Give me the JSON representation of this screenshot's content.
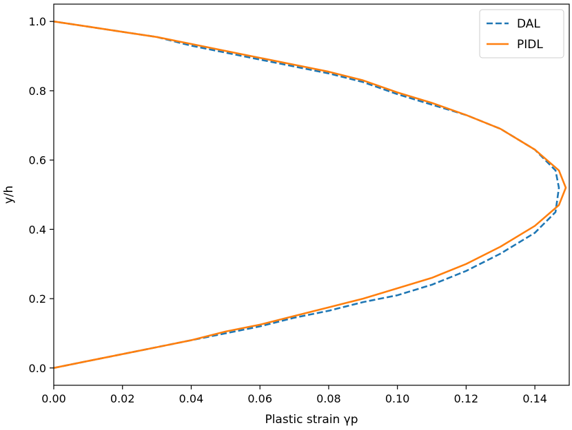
{
  "chart_data": {
    "type": "line",
    "title": "",
    "xlabel": "Plastic strain γp",
    "ylabel": "y/h",
    "xlim": [
      0.0,
      0.15
    ],
    "ylim": [
      -0.05,
      1.05
    ],
    "xticks": [
      "0.00",
      "0.02",
      "0.04",
      "0.06",
      "0.08",
      "0.10",
      "0.12",
      "0.14"
    ],
    "yticks": [
      "0.0",
      "0.2",
      "0.4",
      "0.6",
      "0.8",
      "1.0"
    ],
    "grid": false,
    "legend_position": "top-right",
    "series": [
      {
        "name": "DAL",
        "style": "dashed",
        "color": "#1f77b4",
        "x": [
          0.0,
          0.01,
          0.02,
          0.03,
          0.04,
          0.05,
          0.06,
          0.07,
          0.08,
          0.09,
          0.1,
          0.11,
          0.12,
          0.13,
          0.14,
          0.146,
          0.147,
          0.146,
          0.14,
          0.13,
          0.12,
          0.11,
          0.1,
          0.09,
          0.08,
          0.07,
          0.06,
          0.05,
          0.04,
          0.03,
          0.02,
          0.01,
          0.0
        ],
        "y": [
          0.0,
          0.02,
          0.04,
          0.06,
          0.08,
          0.1,
          0.12,
          0.145,
          0.165,
          0.19,
          0.21,
          0.24,
          0.28,
          0.33,
          0.39,
          0.45,
          0.52,
          0.57,
          0.63,
          0.69,
          0.73,
          0.76,
          0.79,
          0.825,
          0.85,
          0.87,
          0.89,
          0.91,
          0.93,
          0.955,
          0.97,
          0.985,
          1.0
        ]
      },
      {
        "name": "PIDL",
        "style": "solid",
        "color": "#ff7f0e",
        "x": [
          0.0,
          0.01,
          0.02,
          0.03,
          0.04,
          0.05,
          0.06,
          0.07,
          0.08,
          0.09,
          0.1,
          0.11,
          0.12,
          0.13,
          0.14,
          0.147,
          0.149,
          0.147,
          0.14,
          0.13,
          0.12,
          0.11,
          0.1,
          0.09,
          0.08,
          0.07,
          0.06,
          0.05,
          0.04,
          0.03,
          0.02,
          0.01,
          0.0
        ],
        "y": [
          0.0,
          0.02,
          0.04,
          0.06,
          0.08,
          0.105,
          0.125,
          0.15,
          0.175,
          0.2,
          0.23,
          0.26,
          0.3,
          0.35,
          0.41,
          0.47,
          0.52,
          0.57,
          0.63,
          0.69,
          0.73,
          0.765,
          0.795,
          0.83,
          0.855,
          0.875,
          0.895,
          0.915,
          0.935,
          0.955,
          0.97,
          0.985,
          1.0
        ]
      }
    ]
  }
}
